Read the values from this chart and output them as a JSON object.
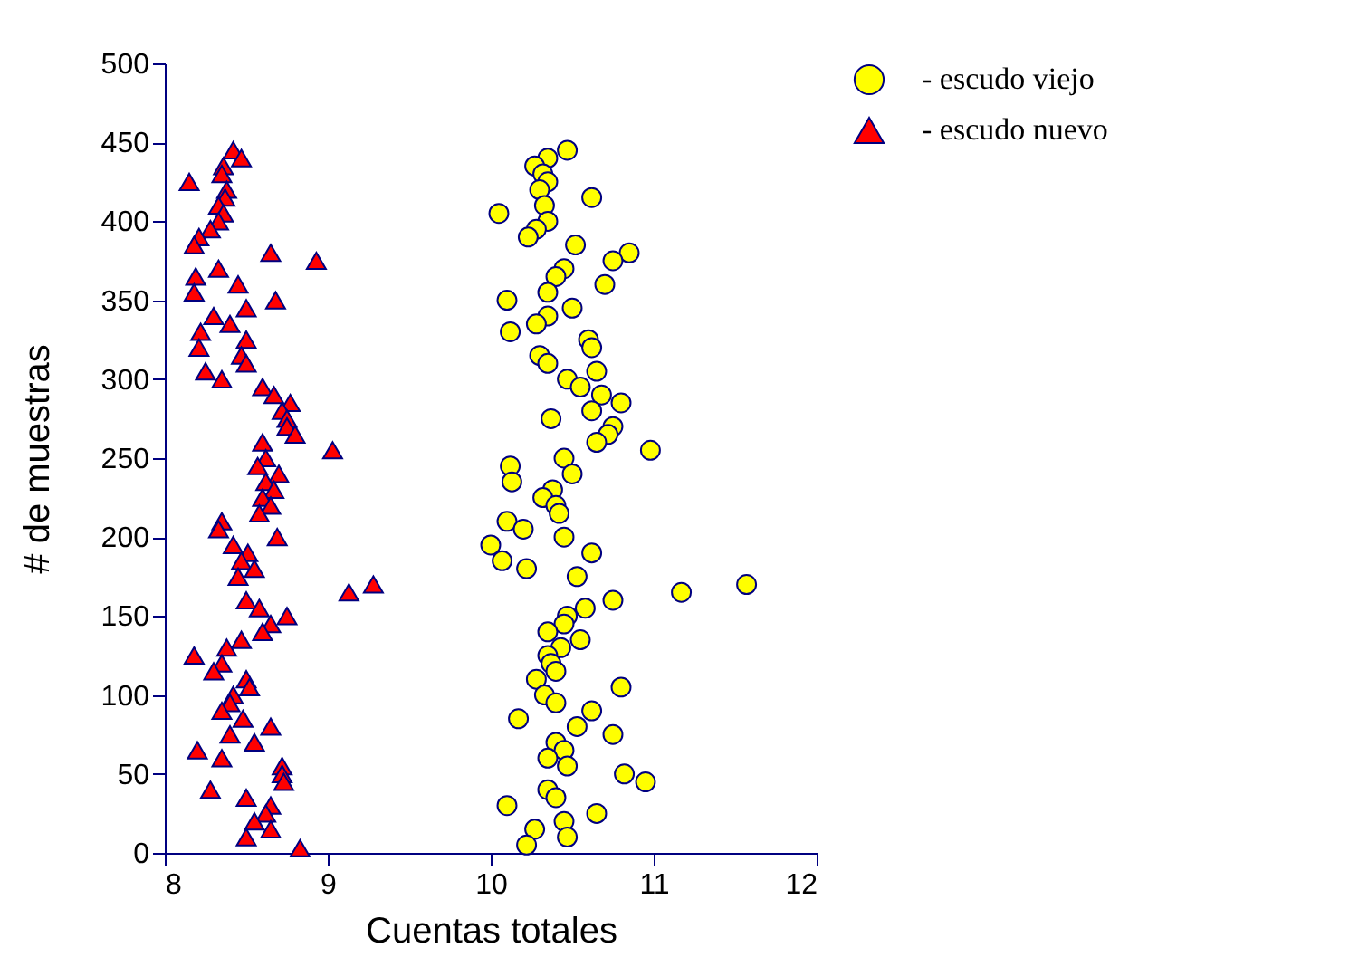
{
  "chart_data": {
    "type": "scatter",
    "xlabel": "Cuentas totales",
    "ylabel": "# de muestras",
    "xlim": [
      8,
      12
    ],
    "xticks": [
      8,
      9,
      10,
      11,
      12
    ],
    "ylim": [
      0,
      500
    ],
    "yticks": [
      0,
      50,
      100,
      150,
      200,
      250,
      300,
      350,
      400,
      450,
      500
    ],
    "grid": false,
    "legend": "top right",
    "series": [
      {
        "name": "- escudo viejo",
        "color": "#ffff00",
        "marker": "circle",
        "x": [
          10.47,
          10.35,
          10.27,
          10.32,
          10.35,
          10.3,
          10.62,
          10.33,
          10.05,
          10.35,
          10.28,
          10.23,
          10.52,
          10.85,
          10.75,
          10.45,
          10.4,
          10.7,
          10.35,
          10.1,
          10.5,
          10.35,
          10.28,
          10.12,
          10.6,
          10.62,
          10.3,
          10.35,
          10.65,
          10.47,
          10.55,
          10.68,
          10.8,
          10.62,
          10.37,
          10.75,
          10.72,
          10.65,
          10.98,
          10.45,
          10.12,
          10.5,
          10.13,
          10.38,
          10.32,
          10.4,
          10.42,
          10.1,
          10.2,
          10.45,
          10.0,
          10.62,
          10.07,
          10.22,
          10.53,
          11.57,
          11.17,
          10.75,
          10.58,
          10.47,
          10.45,
          10.35,
          10.55,
          10.43,
          10.35,
          10.37,
          10.4,
          10.28,
          10.8,
          10.33,
          10.4,
          10.62,
          10.17,
          10.53,
          10.75,
          10.4,
          10.45,
          10.35,
          10.47,
          10.82,
          10.95,
          10.35,
          10.4,
          10.1,
          10.65,
          10.45,
          10.27,
          10.47,
          10.22
        ],
        "values": [
          445,
          440,
          435,
          430,
          425,
          420,
          415,
          410,
          405,
          400,
          395,
          390,
          385,
          380,
          375,
          370,
          365,
          360,
          355,
          350,
          345,
          340,
          335,
          330,
          325,
          320,
          315,
          310,
          305,
          300,
          295,
          290,
          285,
          280,
          275,
          270,
          265,
          260,
          255,
          250,
          245,
          240,
          235,
          230,
          225,
          220,
          215,
          210,
          205,
          200,
          195,
          190,
          185,
          180,
          175,
          170,
          165,
          160,
          155,
          150,
          145,
          140,
          135,
          130,
          125,
          120,
          115,
          110,
          105,
          100,
          95,
          90,
          85,
          80,
          75,
          70,
          65,
          60,
          55,
          50,
          45,
          40,
          35,
          30,
          25,
          20,
          15,
          10,
          5
        ]
      },
      {
        "name": "- escudo nuevo",
        "color": "#ff0000",
        "marker": "triangle",
        "x": [
          8.42,
          8.47,
          8.36,
          8.35,
          8.15,
          8.38,
          8.37,
          8.33,
          8.36,
          8.33,
          8.28,
          8.21,
          8.18,
          8.65,
          8.93,
          8.33,
          8.19,
          8.45,
          8.18,
          8.68,
          8.5,
          8.3,
          8.4,
          8.22,
          8.5,
          8.21,
          8.47,
          8.5,
          8.25,
          8.35,
          8.6,
          8.67,
          8.77,
          8.72,
          8.75,
          8.75,
          8.8,
          8.6,
          9.03,
          8.62,
          8.57,
          8.7,
          8.62,
          8.67,
          8.6,
          8.65,
          8.58,
          8.35,
          8.33,
          8.69,
          8.42,
          8.51,
          8.47,
          8.55,
          8.45,
          9.28,
          9.13,
          8.5,
          8.58,
          8.75,
          8.65,
          8.6,
          8.47,
          8.38,
          8.18,
          8.35,
          8.3,
          8.5,
          8.52,
          8.42,
          8.4,
          8.35,
          8.48,
          8.65,
          8.4,
          8.55,
          8.2,
          8.35,
          8.72,
          8.72,
          8.73,
          8.28,
          8.5,
          8.65,
          8.62,
          8.55,
          8.65,
          8.5,
          8.83
        ],
        "values": [
          445,
          440,
          435,
          430,
          425,
          420,
          415,
          410,
          405,
          400,
          395,
          390,
          385,
          380,
          375,
          370,
          365,
          360,
          355,
          350,
          345,
          340,
          335,
          330,
          325,
          320,
          315,
          310,
          305,
          300,
          295,
          290,
          285,
          280,
          275,
          270,
          265,
          260,
          255,
          250,
          245,
          240,
          235,
          230,
          225,
          220,
          215,
          210,
          205,
          200,
          195,
          190,
          185,
          180,
          175,
          170,
          165,
          160,
          155,
          150,
          145,
          140,
          135,
          130,
          125,
          120,
          115,
          110,
          105,
          100,
          95,
          90,
          85,
          80,
          75,
          70,
          65,
          60,
          55,
          50,
          45,
          40,
          35,
          30,
          25,
          20,
          15,
          10,
          3
        ]
      }
    ]
  }
}
